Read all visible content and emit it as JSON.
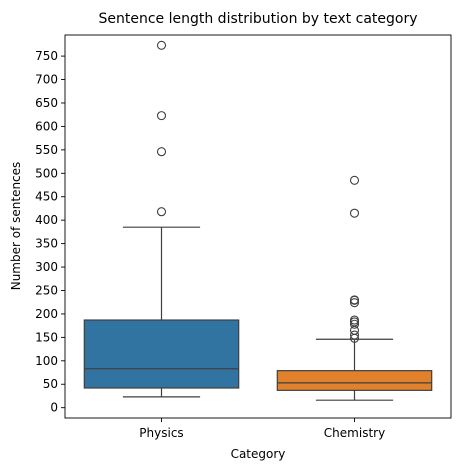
{
  "chart_data": {
    "type": "box",
    "title": "Sentence length distribution by text category",
    "xlabel": "Category",
    "ylabel": "Number of sentences",
    "categories": [
      "Physics",
      "Chemistry"
    ],
    "yticks": [
      0,
      50,
      100,
      150,
      200,
      250,
      300,
      350,
      400,
      450,
      500,
      550,
      600,
      650,
      700,
      750
    ],
    "ylim": [
      -22,
      795
    ],
    "grid": false,
    "legend": "none",
    "boxes": [
      {
        "category": "Physics",
        "color": "#3274a1",
        "whisker_low": 23,
        "q1": 42,
        "median": 83,
        "q3": 187,
        "whisker_high": 385,
        "outliers": [
          418,
          546,
          623,
          773
        ]
      },
      {
        "category": "Chemistry",
        "color": "#e1812c",
        "whisker_low": 16,
        "q1": 37,
        "median": 53,
        "q3": 79,
        "whisker_high": 146,
        "outliers": [
          148,
          155,
          165,
          178,
          183,
          187,
          224,
          229,
          230,
          415,
          485
        ]
      }
    ]
  }
}
